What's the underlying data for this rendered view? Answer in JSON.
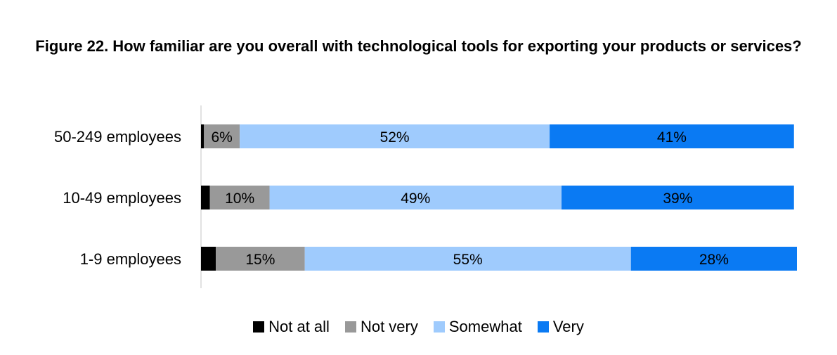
{
  "chart_data": {
    "type": "bar",
    "orientation": "horizontal",
    "stacked": true,
    "title": "Figure 22. How familiar are you overall with technological tools for exporting your products or services?",
    "categories": [
      "50-249 employees",
      "10-49 employees",
      "1-9 employees"
    ],
    "series": [
      {
        "name": "Not at all",
        "color": "#000000",
        "values": [
          0.5,
          1.5,
          2.5
        ],
        "labels": [
          "",
          "",
          ""
        ]
      },
      {
        "name": "Not very",
        "color": "#999999",
        "values": [
          6,
          10,
          15
        ],
        "labels": [
          "6%",
          "10%",
          "15%"
        ]
      },
      {
        "name": "Somewhat",
        "color": "#9fcbfd",
        "values": [
          52,
          49,
          55
        ],
        "labels": [
          "52%",
          "49%",
          "55%"
        ]
      },
      {
        "name": "Very",
        "color": "#0a7af3",
        "values": [
          41,
          39,
          28
        ],
        "labels": [
          "41%",
          "39%",
          "28%"
        ]
      }
    ],
    "xlim": [
      0,
      100
    ],
    "grid": false,
    "legend_position": "bottom"
  }
}
